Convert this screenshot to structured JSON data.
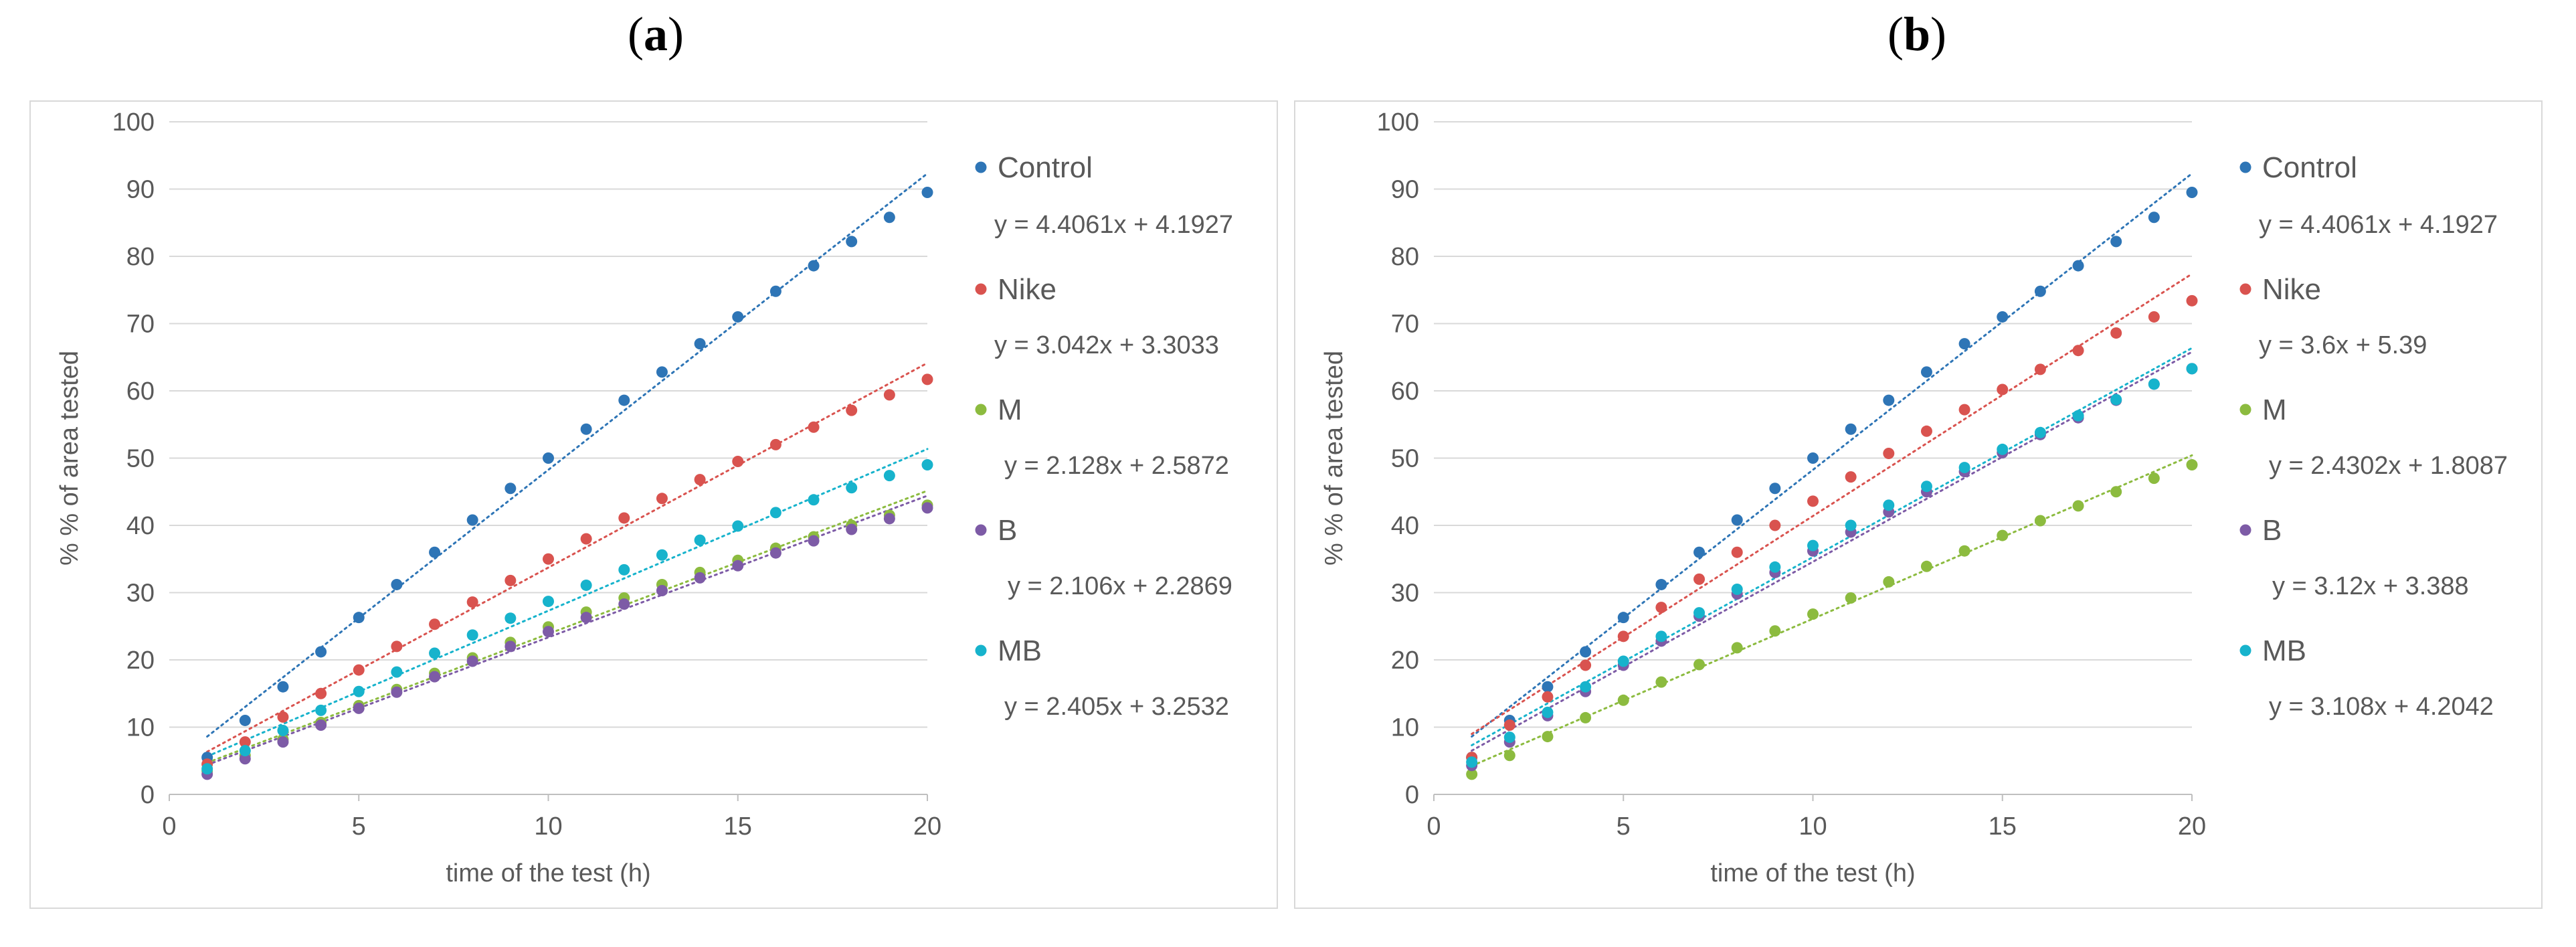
{
  "chart_data": [
    {
      "type": "scatter",
      "panel_label": "a",
      "title": "",
      "xlabel": "time of the test (h)",
      "ylabel": "% % of area tested",
      "xlim": [
        0,
        20
      ],
      "ylim": [
        0,
        100
      ],
      "x_ticks": [
        "0",
        "5",
        "10",
        "15",
        "20"
      ],
      "y_ticks": [
        "0",
        "10",
        "20",
        "30",
        "40",
        "50",
        "60",
        "70",
        "80",
        "90",
        "100"
      ],
      "grid": "horizontal",
      "legend_position": "right",
      "trendline_style": "dotted",
      "x": [
        1,
        2,
        3,
        4,
        5,
        6,
        7,
        8,
        9,
        10,
        11,
        12,
        13,
        14,
        15,
        16,
        17,
        18,
        19,
        20
      ],
      "series": [
        {
          "name": "Control",
          "color": "#2e75b6",
          "equation": "y = 4.4061x + 4.1927",
          "slope": 4.4061,
          "intercept": 4.1927,
          "values": [
            5.5,
            11,
            16,
            21.2,
            26.3,
            31.2,
            36,
            40.8,
            45.5,
            50,
            54.3,
            58.6,
            62.8,
            67,
            71,
            74.8,
            78.6,
            82.2,
            85.8,
            89.5
          ]
        },
        {
          "name": "Nike",
          "color": "#d9534f",
          "equation": "y = 3.042x + 3.3033",
          "slope": 3.042,
          "intercept": 3.3033,
          "values": [
            4.5,
            7.8,
            11.5,
            15,
            18.5,
            22,
            25.3,
            28.6,
            31.8,
            35,
            38,
            41.1,
            44,
            46.8,
            49.5,
            52,
            54.6,
            57.1,
            59.4,
            61.7
          ]
        },
        {
          "name": "M",
          "color": "#8cbb3f",
          "equation": "y = 2.128x + 2.5872",
          "slope": 2.128,
          "intercept": 2.5872,
          "values": [
            3.5,
            5.8,
            8.2,
            10.7,
            13.2,
            15.6,
            18,
            20.3,
            22.6,
            24.9,
            27.1,
            29.2,
            31.2,
            33,
            34.8,
            36.6,
            38.3,
            40,
            41.5,
            43
          ]
        },
        {
          "name": "B",
          "color": "#7d5ba6",
          "equation": "y = 2.106x + 2.2869",
          "slope": 2.106,
          "intercept": 2.2869,
          "values": [
            3,
            5.3,
            7.8,
            10.3,
            12.8,
            15.2,
            17.5,
            19.8,
            22,
            24.2,
            26.3,
            28.3,
            30.3,
            32.2,
            34,
            35.9,
            37.7,
            39.4,
            41,
            42.6
          ]
        },
        {
          "name": "MB",
          "color": "#17b3cc",
          "equation": "y = 2.405x + 3.2532",
          "slope": 2.405,
          "intercept": 3.2532,
          "values": [
            3.8,
            6.5,
            9.5,
            12.5,
            15.3,
            18.2,
            21,
            23.7,
            26.2,
            28.7,
            31.1,
            33.4,
            35.6,
            37.8,
            39.9,
            41.9,
            43.8,
            45.6,
            47.4,
            49
          ]
        }
      ]
    },
    {
      "type": "scatter",
      "panel_label": "b",
      "title": "",
      "xlabel": "time of the test (h)",
      "ylabel": "% % of area tested",
      "xlim": [
        0,
        20
      ],
      "ylim": [
        0,
        100
      ],
      "x_ticks": [
        "0",
        "5",
        "10",
        "15",
        "20"
      ],
      "y_ticks": [
        "0",
        "10",
        "20",
        "30",
        "40",
        "50",
        "60",
        "70",
        "80",
        "90",
        "100"
      ],
      "grid": "horizontal",
      "legend_position": "right",
      "trendline_style": "dotted",
      "x": [
        1,
        2,
        3,
        4,
        5,
        6,
        7,
        8,
        9,
        10,
        11,
        12,
        13,
        14,
        15,
        16,
        17,
        18,
        19,
        20
      ],
      "series": [
        {
          "name": "Control",
          "color": "#2e75b6",
          "equation": "y = 4.4061x + 4.1927",
          "slope": 4.4061,
          "intercept": 4.1927,
          "values": [
            5.5,
            11,
            16,
            21.2,
            26.3,
            31.2,
            36,
            40.8,
            45.5,
            50,
            54.3,
            58.6,
            62.8,
            67,
            71,
            74.8,
            78.6,
            82.2,
            85.8,
            89.5
          ]
        },
        {
          "name": "Nike",
          "color": "#d9534f",
          "equation": "y = 3.6x + 5.39",
          "slope": 3.6,
          "intercept": 5.39,
          "values": [
            5.5,
            10.3,
            14.5,
            19.2,
            23.5,
            27.8,
            32,
            36,
            40,
            43.6,
            47.2,
            50.7,
            54,
            57.2,
            60.2,
            63.2,
            66,
            68.6,
            71,
            73.4
          ]
        },
        {
          "name": "M",
          "color": "#8cbb3f",
          "equation": "y = 2.4302x + 1.8087",
          "slope": 2.4302,
          "intercept": 1.8087,
          "values": [
            3,
            5.8,
            8.6,
            11.4,
            14,
            16.7,
            19.3,
            21.8,
            24.3,
            26.8,
            29.2,
            31.6,
            33.9,
            36.2,
            38.5,
            40.7,
            42.9,
            45,
            47,
            49
          ]
        },
        {
          "name": "B",
          "color": "#7d5ba6",
          "equation": "y = 3.12x + 3.388",
          "slope": 3.12,
          "intercept": 3.388,
          "values": [
            4.3,
            7.8,
            11.7,
            15.3,
            19.2,
            22.8,
            26.5,
            29.8,
            33,
            36.2,
            39,
            42,
            45,
            48,
            50.8,
            53.5,
            56,
            58.6,
            61,
            63.3
          ]
        },
        {
          "name": "MB",
          "color": "#17b3cc",
          "equation": "y = 3.108x + 4.2042",
          "slope": 3.108,
          "intercept": 4.2042,
          "values": [
            4.8,
            8.5,
            12.2,
            16,
            19.8,
            23.5,
            27,
            30.5,
            33.8,
            37,
            40,
            43,
            45.8,
            48.6,
            51.3,
            53.8,
            56.3,
            58.7,
            61,
            63.3
          ]
        }
      ]
    }
  ]
}
